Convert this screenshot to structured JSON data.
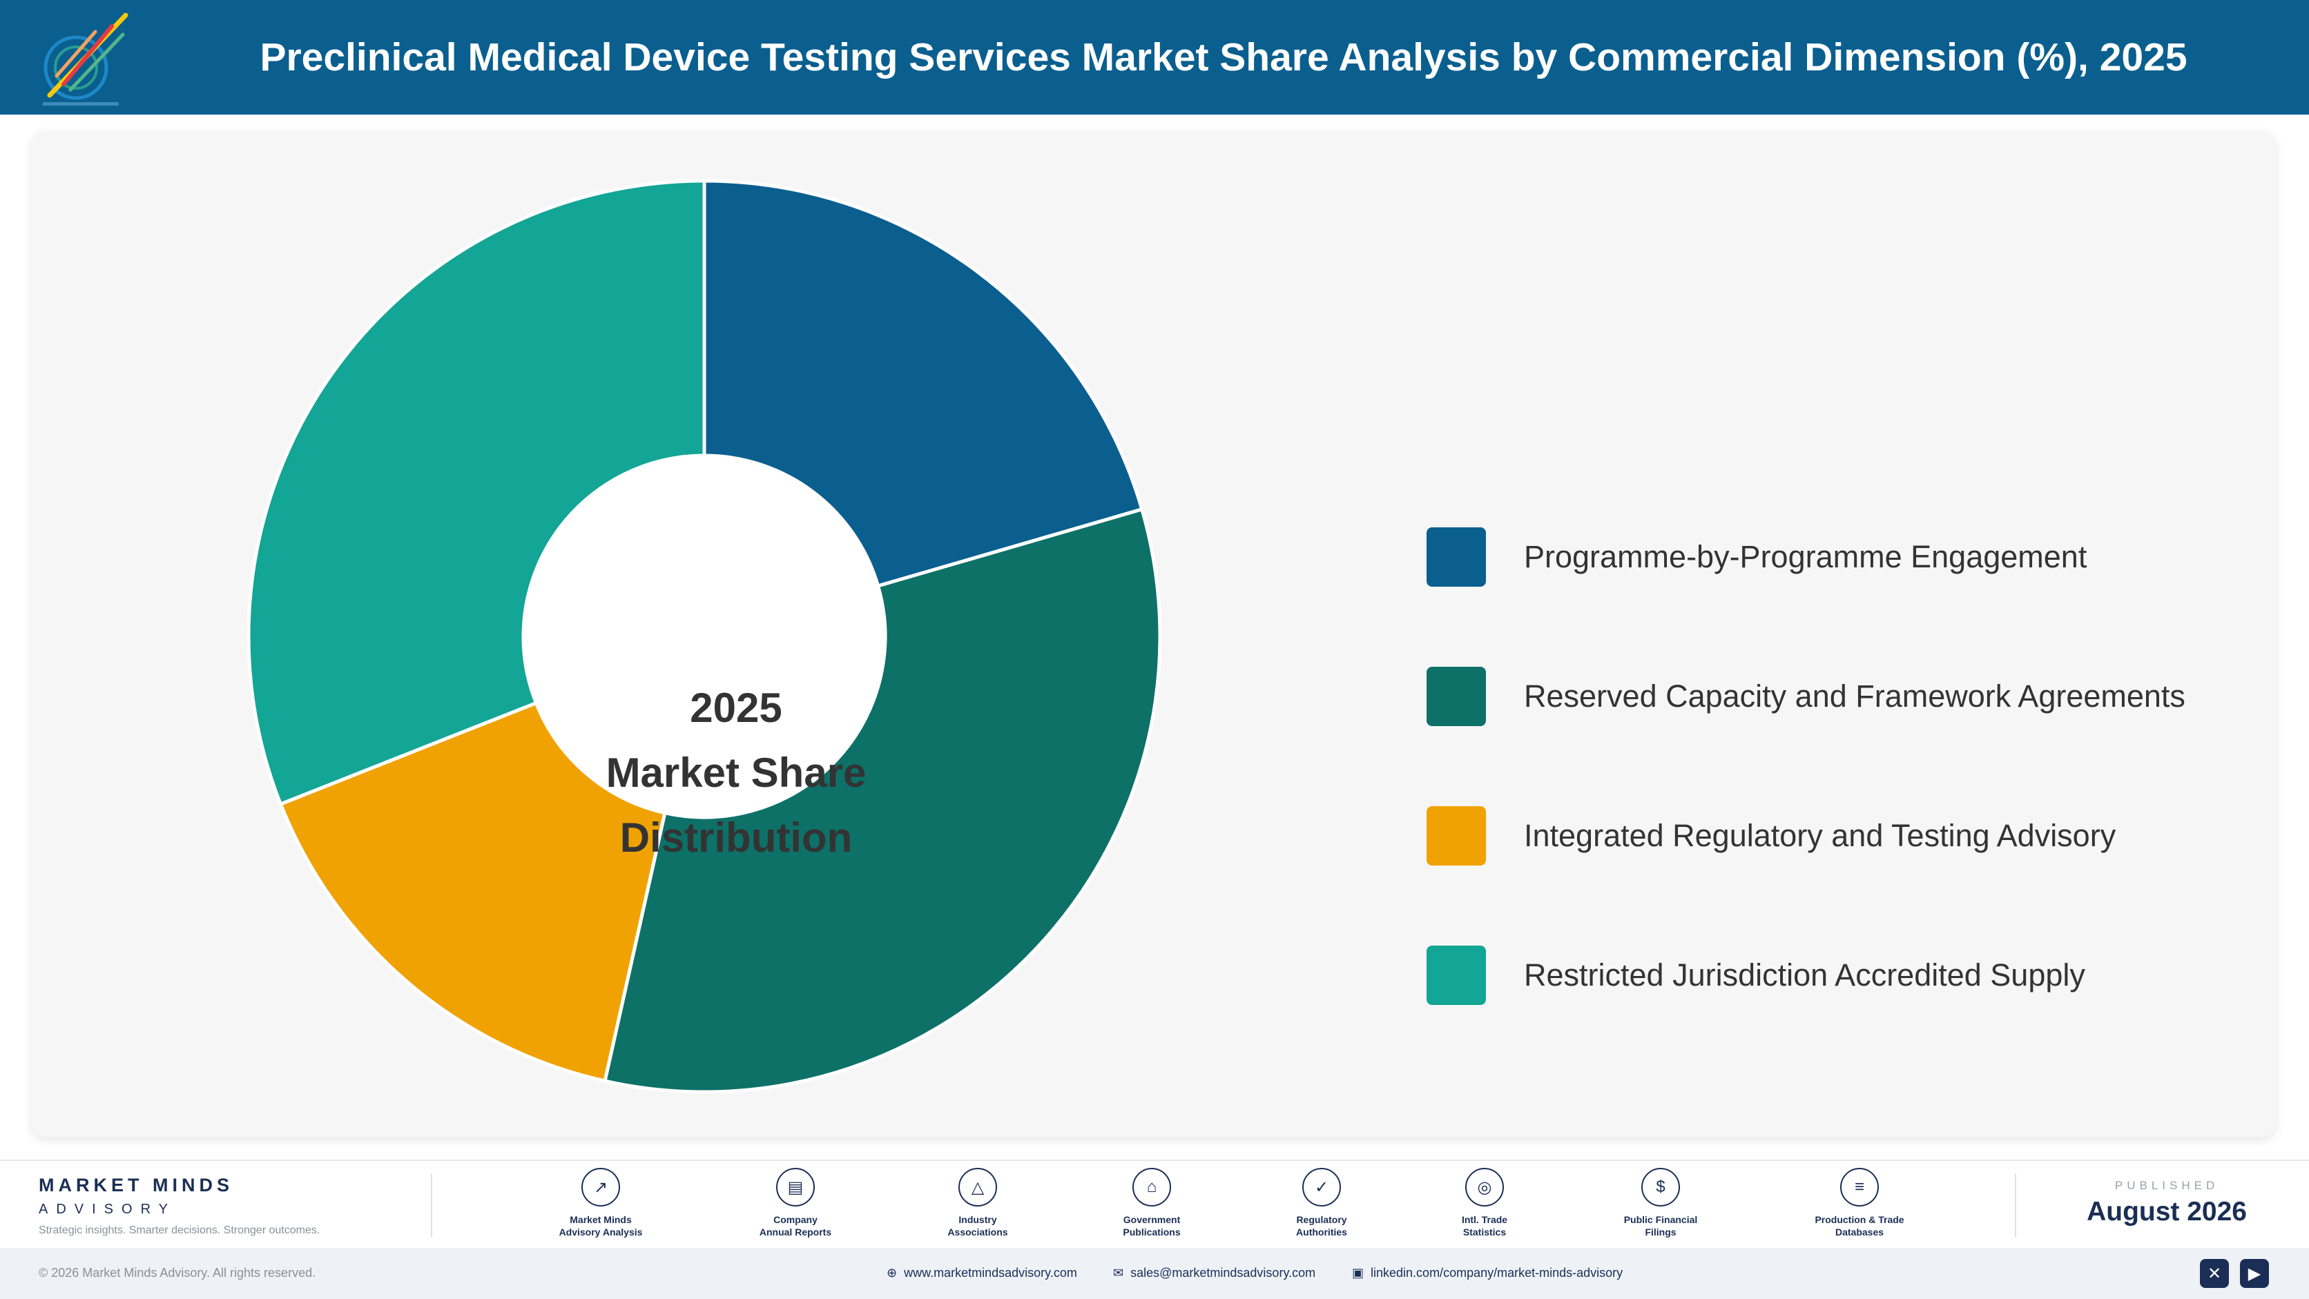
{
  "header": {
    "title": "Preclinical Medical Device Testing Services Market Share Analysis by Commercial Dimension (%), 2025"
  },
  "chart_data": {
    "type": "pie",
    "style": "donut",
    "title": "Preclinical Medical Device Testing Services Market Share Analysis by Commercial Dimension (%), 2025",
    "center_label": [
      "2025",
      "Market Share",
      "Distribution"
    ],
    "categories": [
      "Programme-by-Programme Engagement",
      "Reserved Capacity and Framework Agreements",
      "Integrated Regulatory and Testing Advisory",
      "Restricted Jurisdiction Accredited Supply"
    ],
    "values": [
      20.5,
      33,
      15.5,
      31
    ],
    "colors": [
      "#0a5f8f",
      "#0d7168",
      "#f0a202",
      "#13a595"
    ],
    "legend_position": "right"
  },
  "footer": {
    "brand_name": "MARKET MINDS",
    "brand_sub": "ADVISORY",
    "tagline": "Strategic insights. Smarter decisions. Stronger outcomes.",
    "sources": [
      {
        "icon": "chart-line-icon",
        "glyph": "↗",
        "line1": "Market Minds",
        "line2": "Advisory Analysis"
      },
      {
        "icon": "document-icon",
        "glyph": "▤",
        "line1": "Company",
        "line2": "Annual Reports"
      },
      {
        "icon": "network-icon",
        "glyph": "△",
        "line1": "Industry",
        "line2": "Associations"
      },
      {
        "icon": "government-building-icon",
        "glyph": "⌂",
        "line1": "Government",
        "line2": "Publications"
      },
      {
        "icon": "shield-check-icon",
        "glyph": "✓",
        "line1": "Regulatory",
        "line2": "Authorities"
      },
      {
        "icon": "globe-icon",
        "glyph": "◎",
        "line1": "Intl. Trade",
        "line2": "Statistics"
      },
      {
        "icon": "dollar-icon",
        "glyph": "$",
        "line1": "Public Financial",
        "line2": "Filings"
      },
      {
        "icon": "database-icon",
        "glyph": "≡",
        "line1": "Production & Trade",
        "line2": "Databases"
      }
    ],
    "published_label": "PUBLISHED",
    "published_date": "August 2026",
    "copyright": "© 2026 Market Minds Advisory. All rights reserved.",
    "website": "www.marketmindsadvisory.com",
    "email": "sales@marketmindsadvisory.com",
    "linkedin": "linkedin.com/company/market-minds-advisory"
  }
}
